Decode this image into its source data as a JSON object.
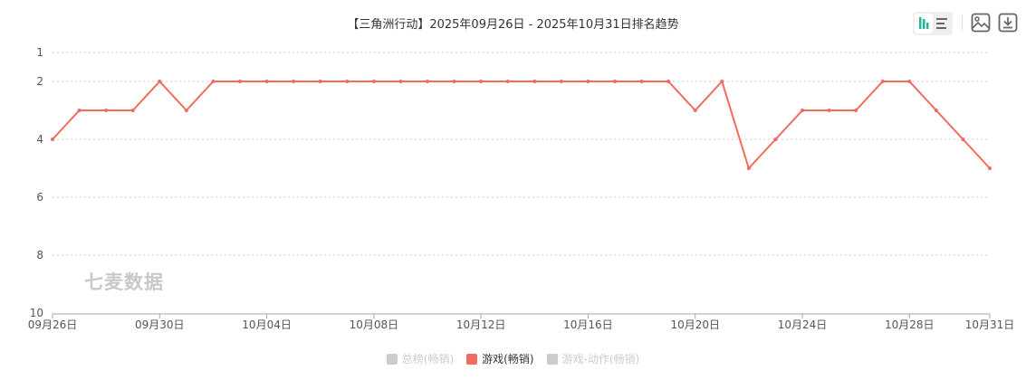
{
  "title": "【三角洲行动】2025年09月26日 - 2025年10月31日排名趋势",
  "toolbar": {
    "icons": [
      "bar-chart-icon",
      "list-icon",
      "image-icon",
      "download-icon"
    ]
  },
  "watermark": "七麦数据",
  "legend": [
    {
      "label": "总榜(畅销)",
      "active": false,
      "color": "#cccccc"
    },
    {
      "label": "游戏(畅销)",
      "active": true,
      "color": "#f26b5f"
    },
    {
      "label": "游戏-动作(畅销)",
      "active": false,
      "color": "#cccccc"
    }
  ],
  "chart_data": {
    "type": "line",
    "title": "【三角洲行动】2025年09月26日 - 2025年10月31日排名趋势",
    "x": [
      "09月26日",
      "09月27日",
      "09月28日",
      "09月29日",
      "09月30日",
      "10月01日",
      "10月02日",
      "10月03日",
      "10月04日",
      "10月05日",
      "10月06日",
      "10月07日",
      "10月08日",
      "10月09日",
      "10月10日",
      "10月11日",
      "10月12日",
      "10月13日",
      "10月14日",
      "10月15日",
      "10月16日",
      "10月17日",
      "10月18日",
      "10月19日",
      "10月20日",
      "10月21日",
      "10月22日",
      "10月23日",
      "10月24日",
      "10月25日",
      "10月26日",
      "10月27日",
      "10月28日",
      "10月29日",
      "10月30日",
      "10月31日"
    ],
    "x_tick_labels": [
      "09月26日",
      "09月30日",
      "10月04日",
      "10月08日",
      "10月12日",
      "10月16日",
      "10月20日",
      "10月24日",
      "10月28日",
      "10月31日"
    ],
    "series": [
      {
        "name": "游戏(畅销)",
        "color": "#f26b5f",
        "values": [
          4,
          3,
          3,
          3,
          2,
          3,
          2,
          2,
          2,
          2,
          2,
          2,
          2,
          2,
          2,
          2,
          2,
          2,
          2,
          2,
          2,
          2,
          2,
          2,
          3,
          2,
          5,
          4,
          3,
          3,
          3,
          2,
          2,
          3,
          4,
          5
        ]
      }
    ],
    "y_tick_labels": [
      1,
      2,
      4,
      6,
      8,
      10
    ],
    "ylim": [
      1,
      10
    ],
    "y_inverted": true,
    "grid": true,
    "legend_position": "bottom"
  }
}
